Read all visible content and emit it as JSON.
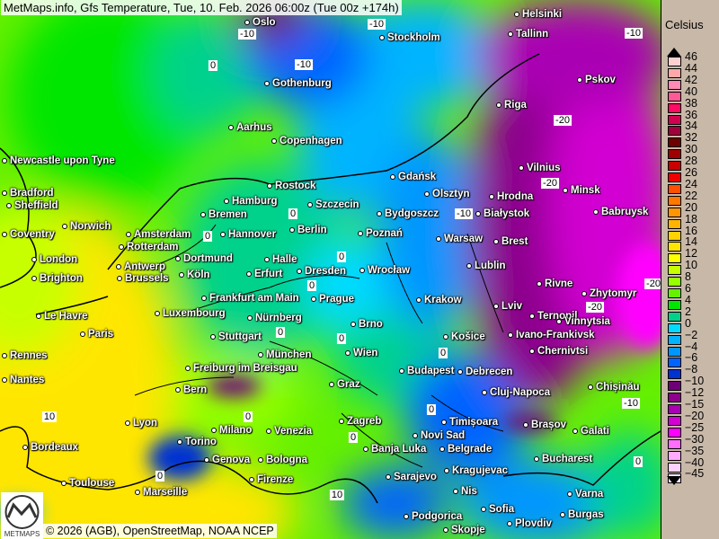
{
  "title": "MetMaps.info, Gfs Temperature, Tue, 10. Feb. 2026 06:00z (Tue 00z +174h)",
  "credit": "© 2026 (AGB), OpenStreetMap, NOAA NCEP",
  "logo_text": "METMAPS",
  "legend": {
    "unit": "Celsius",
    "entries": [
      {
        "v": "46",
        "c": "#ffd0d0"
      },
      {
        "v": "44",
        "c": "#ffa8a8"
      },
      {
        "v": "42",
        "c": "#ff8ab4"
      },
      {
        "v": "40",
        "c": "#ff5a96"
      },
      {
        "v": "38",
        "c": "#ff0a64"
      },
      {
        "v": "36",
        "c": "#d20050"
      },
      {
        "v": "34",
        "c": "#a0003c"
      },
      {
        "v": "32",
        "c": "#6e0000"
      },
      {
        "v": "30",
        "c": "#a00000"
      },
      {
        "v": "28",
        "c": "#c80000"
      },
      {
        "v": "26",
        "c": "#f00000"
      },
      {
        "v": "24",
        "c": "#ff5000"
      },
      {
        "v": "22",
        "c": "#ff7800"
      },
      {
        "v": "20",
        "c": "#ff9600"
      },
      {
        "v": "18",
        "c": "#ffb400"
      },
      {
        "v": "16",
        "c": "#ffd200"
      },
      {
        "v": "14",
        "c": "#ffe600"
      },
      {
        "v": "12",
        "c": "#ffff00"
      },
      {
        "v": "10",
        "c": "#c8ff00"
      },
      {
        "v": "8",
        "c": "#96ff00"
      },
      {
        "v": "6",
        "c": "#64f000"
      },
      {
        "v": "4",
        "c": "#00e600"
      },
      {
        "v": "2",
        "c": "#00d28c"
      },
      {
        "v": "0",
        "c": "#00dcff"
      },
      {
        "v": "−2",
        "c": "#00b4ff"
      },
      {
        "v": "−4",
        "c": "#0096ff"
      },
      {
        "v": "−6",
        "c": "#0064ff"
      },
      {
        "v": "−8",
        "c": "#0032d2"
      },
      {
        "v": "−10",
        "c": "#6e0078"
      },
      {
        "v": "−12",
        "c": "#8c008c"
      },
      {
        "v": "−15",
        "c": "#aa00b4"
      },
      {
        "v": "−20",
        "c": "#d200d2"
      },
      {
        "v": "−25",
        "c": "#ff00ff"
      },
      {
        "v": "−30",
        "c": "#ff6eff"
      },
      {
        "v": "−35",
        "c": "#ffaaff"
      },
      {
        "v": "−40",
        "c": "#ffd2ff"
      },
      {
        "v": "−45",
        "c": "#ffe6ff"
      }
    ]
  },
  "cities": [
    "Oslo",
    "Helsinki",
    "Stockholm",
    "Tallinn",
    "Gothenburg",
    "Pskov",
    "Riga",
    "Aarhus",
    "Copenhagen",
    "Newcastle upon Tyne",
    "Vilnius",
    "Gdańsk",
    "Rostock",
    "Minsk",
    "Bradford",
    "Olsztyn",
    "Hrodna",
    "Sheffield",
    "Hamburg",
    "Szczecin",
    "Bremen",
    "Bydgoszcz",
    "Białystok",
    "Babruysk",
    "Norwich",
    "Coventry",
    "Amsterdam",
    "Hannover",
    "Berlin",
    "Poznań",
    "Warsaw",
    "Brest",
    "Rotterdam",
    "Dortmund",
    "Halle",
    "London",
    "Antwerp",
    "Dresden",
    "Wrocław",
    "Lublin",
    "Erfurt",
    "Köln",
    "Brussels",
    "Brighton",
    "Rivne",
    "Zhytomyr",
    "Frankfurt am Main",
    "Prague",
    "Krakow",
    "Lviv",
    "Ternopil",
    "Luxembourg",
    "Le Havre",
    "Nürnberg",
    "Brno",
    "Vinnytsia",
    "Paris",
    "Stuttgart",
    "Ivano-Frankivsk",
    "Košice",
    "Wien",
    "Chernivtsi",
    "München",
    "Rennes",
    "Freiburg im Breisgau",
    "Budapest",
    "Debrecen",
    "Nantes",
    "Graz",
    "Bern",
    "Chișinău",
    "Cluj-Napoca",
    "Zagreb",
    "Timișoara",
    "Lyon",
    "Brașov",
    "Galati",
    "Milano",
    "Venezia",
    "Novi Sad",
    "Bordeaux",
    "Torino",
    "Banja Luka",
    "Belgrade",
    "Genova",
    "Bologna",
    "Bucharest",
    "Sarajevo",
    "Kragujevac",
    "Toulouse",
    "Firenze",
    "Marseille",
    "Nis",
    "Varna",
    "Sofia",
    "Burgas",
    "Podgorica",
    "Plovdiv",
    "Skopje"
  ],
  "contour_labels": [
    "-10",
    "-10",
    "0",
    "-10",
    "-10",
    "-20",
    "-20",
    "-10",
    "-20",
    "-20",
    "-10",
    "0",
    "0",
    "0",
    "0",
    "0",
    "0",
    "0",
    "0",
    "0",
    "10",
    "0",
    "0",
    "0",
    "10"
  ]
}
